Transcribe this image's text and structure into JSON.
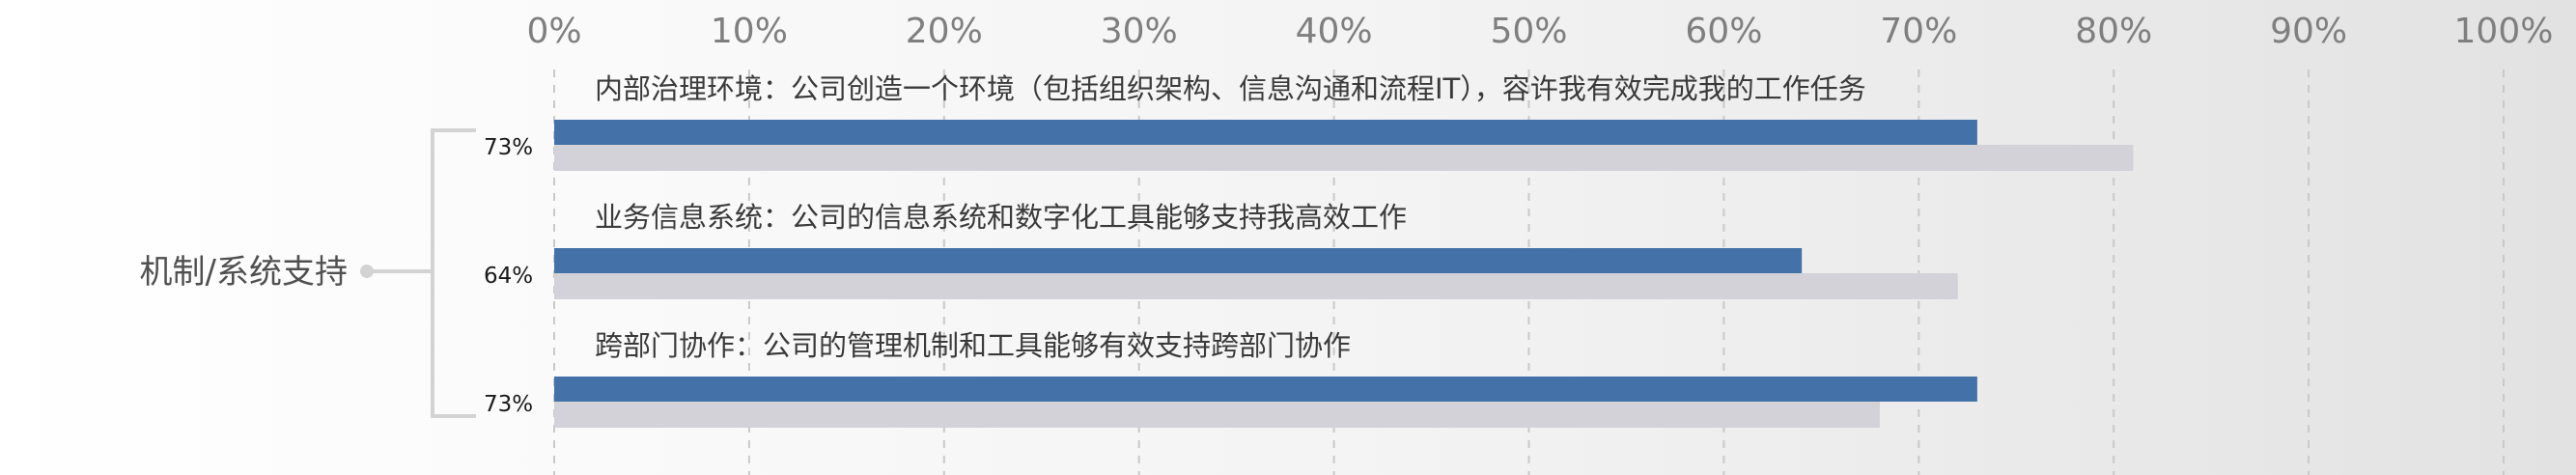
{
  "chart_data": {
    "type": "bar",
    "orientation": "horizontal",
    "xlim": [
      0,
      100
    ],
    "x_ticks": [
      "0%",
      "10%",
      "20%",
      "30%",
      "40%",
      "50%",
      "60%",
      "70%",
      "80%",
      "90%",
      "100%"
    ],
    "grid": true,
    "category_group": "机制/系统支持",
    "categories": [
      "内部治理环境：公司创造一个环境（包括组织架构、信息沟通和流程IT），容许我有效完成我的工作任务",
      "业务信息系统：公司的信息系统和数字化工具能够支持我高效工作",
      "跨部门协作：公司的管理机制和工具能够有效支持跨部门协作"
    ],
    "value_labels": [
      "73%",
      "64%",
      "73%"
    ],
    "series": [
      {
        "values": [
          73,
          64,
          73
        ],
        "color": "#4472a8"
      },
      {
        "values": [
          81,
          72,
          68
        ],
        "color": "#d2d2d8"
      }
    ]
  }
}
